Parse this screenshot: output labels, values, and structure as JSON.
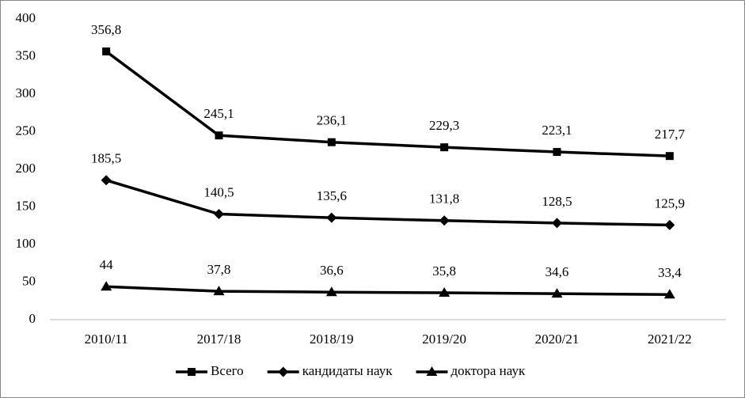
{
  "chart_data": {
    "type": "line",
    "categories": [
      "2010/11",
      "2017/18",
      "2018/19",
      "2019/20",
      "2020/21",
      "2021/22"
    ],
    "series": [
      {
        "name": "Всего",
        "color": "#000000",
        "marker": "square",
        "values": [
          356.8,
          245.1,
          236.1,
          229.3,
          223.1,
          217.7
        ],
        "value_labels": [
          "356,8",
          "245,1",
          "236,1",
          "229,3",
          "223,1",
          "217,7"
        ]
      },
      {
        "name": "кандидаты наук",
        "color": "#000000",
        "marker": "diamond",
        "values": [
          185.5,
          140.5,
          135.6,
          131.8,
          128.5,
          125.9
        ],
        "value_labels": [
          "185,5",
          "140,5",
          "135,6",
          "131,8",
          "128,5",
          "125,9"
        ]
      },
      {
        "name": "доктора наук",
        "color": "#000000",
        "marker": "triangle",
        "values": [
          44,
          37.8,
          36.6,
          35.8,
          34.6,
          33.4
        ],
        "value_labels": [
          "44",
          "37,8",
          "36,6",
          "35,8",
          "34,6",
          "33,4"
        ]
      }
    ],
    "ylim": [
      0,
      400
    ],
    "yticks": [
      0,
      50,
      100,
      150,
      200,
      250,
      300,
      350,
      400
    ],
    "grid": false,
    "legend": "bottom"
  }
}
